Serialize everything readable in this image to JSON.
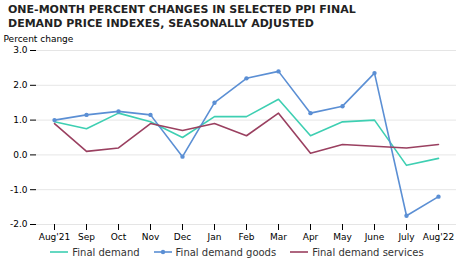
{
  "chart_data": {
    "type": "line",
    "title": "ONE-MONTH PERCENT CHANGES IN SELECTED PPI FINAL\nDEMAND PRICE INDEXES, SEASONALLY ADJUSTED",
    "ylabel": "Percent change",
    "categories": [
      "Aug'21",
      "Sep",
      "Oct",
      "Nov",
      "Dec",
      "Jan",
      "Feb",
      "Mar",
      "Apr",
      "May",
      "June",
      "July",
      "Aug'22"
    ],
    "series": [
      {
        "name": "Final demand",
        "color": "#3ecfb2",
        "values": [
          0.95,
          0.75,
          1.2,
          0.95,
          0.5,
          1.1,
          1.1,
          1.6,
          0.55,
          0.95,
          1.0,
          -0.3,
          -0.1
        ]
      },
      {
        "name": "Final demand goods",
        "color": "#5b8fd4",
        "marker": "circle",
        "values": [
          1.0,
          1.15,
          1.25,
          1.15,
          -0.05,
          1.5,
          2.2,
          2.4,
          1.2,
          1.4,
          2.35,
          -1.75,
          -1.2
        ]
      },
      {
        "name": "Final demand services",
        "color": "#9a4060",
        "values": [
          0.9,
          0.1,
          0.2,
          0.9,
          0.7,
          0.9,
          0.55,
          1.2,
          0.05,
          0.3,
          0.25,
          0.2,
          0.3
        ]
      }
    ],
    "ylim": [
      -2.0,
      3.0
    ],
    "yticks": [
      {
        "value": -2.0,
        "label": "-2.0"
      },
      {
        "value": -1.0,
        "label": "-1.0"
      },
      {
        "value": 0.0,
        "label": "0.0"
      },
      {
        "value": 1.0,
        "label": "1.0"
      },
      {
        "value": 2.0,
        "label": "2.0"
      },
      {
        "value": 3.0,
        "label": "3.0"
      }
    ],
    "grid": true,
    "legend": "bottom"
  }
}
